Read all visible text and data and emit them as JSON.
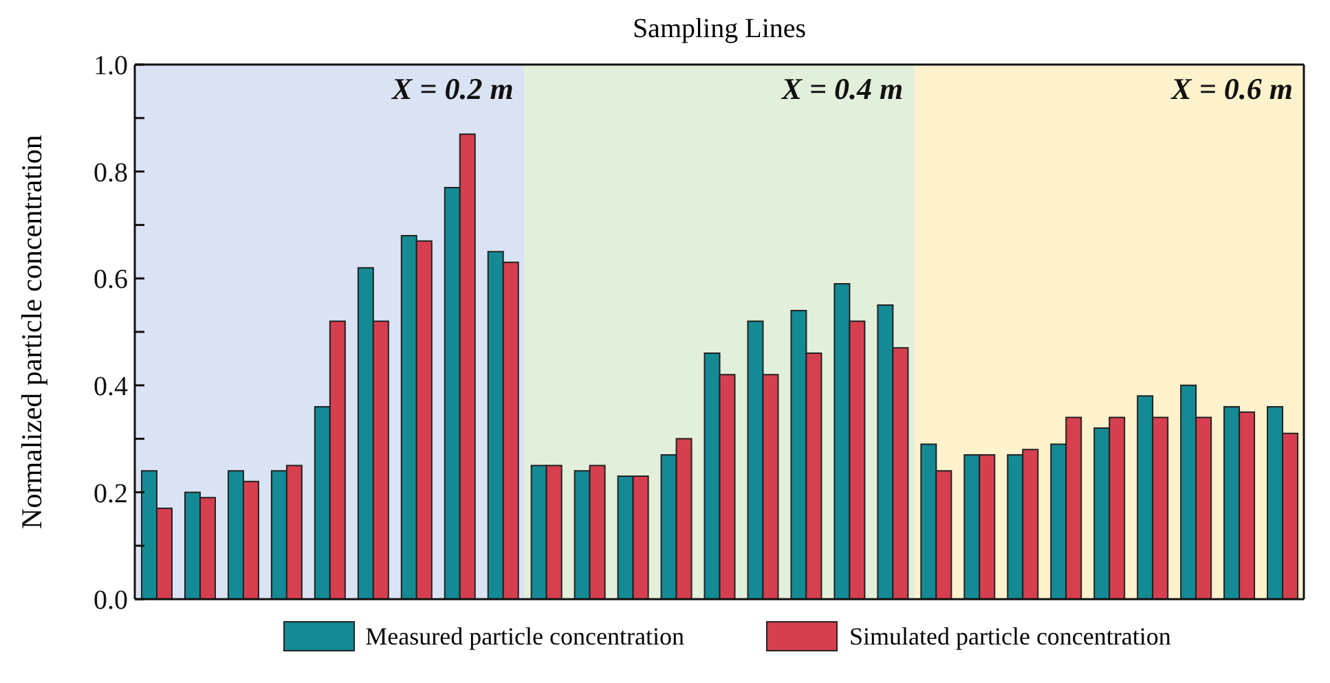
{
  "chart_data": {
    "type": "bar",
    "title": "Sampling Lines",
    "ylabel": "Normalized particle concentration",
    "annotations": [
      "X = 0.2 m",
      "X = 0.4 m",
      "X = 0.6 m"
    ],
    "categories": [
      null,
      null,
      null,
      null,
      null,
      null,
      null,
      null,
      null,
      null,
      null,
      null,
      null,
      null,
      null,
      null,
      null,
      null,
      null,
      null,
      null,
      null,
      null,
      null,
      null,
      null,
      null
    ],
    "series": [
      {
        "name": "Measured particle concentration",
        "color": "#138a94",
        "values": [
          0.24,
          0.2,
          0.24,
          0.24,
          0.36,
          0.62,
          0.68,
          0.77,
          0.65,
          0.25,
          0.24,
          0.23,
          0.27,
          0.46,
          0.52,
          0.54,
          0.59,
          0.55,
          0.29,
          0.27,
          0.27,
          0.29,
          0.32,
          0.38,
          0.4,
          0.36,
          0.36
        ]
      },
      {
        "name": "Simulated particle concentration",
        "color": "#d63f4f",
        "values": [
          0.17,
          0.19,
          0.22,
          0.25,
          0.52,
          0.52,
          0.67,
          0.87,
          0.63,
          0.25,
          0.25,
          0.23,
          0.3,
          0.42,
          0.42,
          0.46,
          0.52,
          0.47,
          0.24,
          0.27,
          0.28,
          0.34,
          0.34,
          0.34,
          0.34,
          0.35,
          0.31
        ]
      }
    ],
    "ylim": [
      0,
      1
    ],
    "yticks": [
      {
        "value": 0,
        "label": "0.0"
      },
      {
        "value": 0.1,
        "label": null
      },
      {
        "value": 0.2,
        "label": "0.2"
      },
      {
        "value": 0.3,
        "label": null
      },
      {
        "value": 0.4,
        "label": "0.4"
      },
      {
        "value": 0.5,
        "label": null
      },
      {
        "value": 0.6,
        "label": "0.6"
      },
      {
        "value": 0.7,
        "label": null
      },
      {
        "value": 0.8,
        "label": "0.8"
      },
      {
        "value": 0.9,
        "label": null
      },
      {
        "value": 1,
        "label": "1.0"
      }
    ],
    "legend": "bottom"
  }
}
